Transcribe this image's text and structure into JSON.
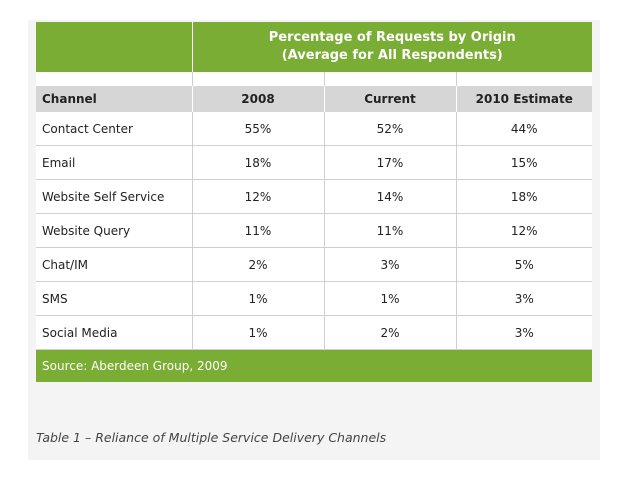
{
  "chart_data": {
    "type": "table",
    "title": "Percentage of Requests by Origin",
    "subtitle": "(Average for All Respondents)",
    "columns": [
      "Channel",
      "2008",
      "Current",
      "2010 Estimate"
    ],
    "rows": [
      [
        "Contact Center",
        "55%",
        "52%",
        "44%"
      ],
      [
        "Email",
        "18%",
        "17%",
        "15%"
      ],
      [
        "Website Self Service",
        "12%",
        "14%",
        "18%"
      ],
      [
        "Website Query",
        "11%",
        "11%",
        "12%"
      ],
      [
        "Chat/IM",
        "2%",
        "3%",
        "5%"
      ],
      [
        "SMS",
        "1%",
        "1%",
        "3%"
      ],
      [
        "Social Media",
        "1%",
        "2%",
        "3%"
      ]
    ],
    "source": "Source: Aberdeen Group, 2009",
    "caption": "Table 1 – Reliance of Multiple Service Delivery Channels"
  },
  "colors": {
    "banner": "#7aad33",
    "header": "#d6d6d6",
    "text": "#222222"
  }
}
